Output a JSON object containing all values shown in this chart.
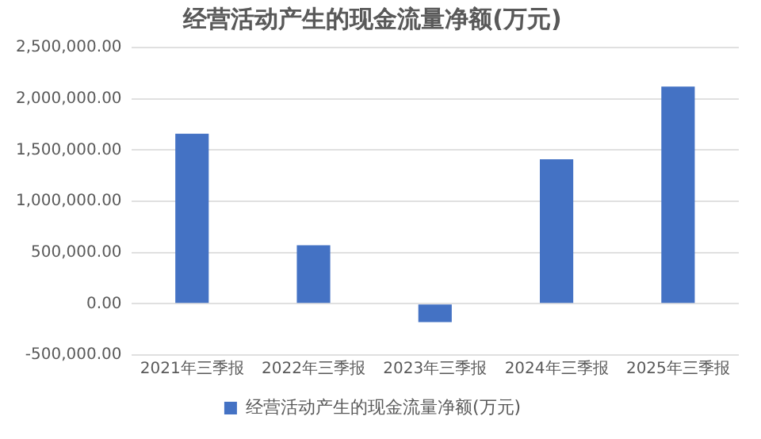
{
  "chart_data": {
    "type": "bar",
    "title": "经营活动产生的现金流量净额(万元)",
    "categories": [
      "2021年三季报",
      "2022年三季报",
      "2023年三季报",
      "2024年三季报",
      "2025年三季报"
    ],
    "series": [
      {
        "name": "经营活动产生的现金流量净额(万元)",
        "color": "#4472c4",
        "values": [
          1660000,
          570000,
          -180000,
          1410000,
          2120000
        ]
      }
    ],
    "ylim": [
      -500000,
      2500000
    ],
    "yticks": [
      {
        "value": -500000,
        "label": "-500,000.00"
      },
      {
        "value": 0,
        "label": "0.00"
      },
      {
        "value": 500000,
        "label": "500,000.00"
      },
      {
        "value": 1000000,
        "label": "1,000,000.00"
      },
      {
        "value": 1500000,
        "label": "1,500,000.00"
      },
      {
        "value": 2000000,
        "label": "2,000,000.00"
      },
      {
        "value": 2500000,
        "label": "2,500,000.00"
      }
    ],
    "grid": "y",
    "legend": "bottom"
  }
}
